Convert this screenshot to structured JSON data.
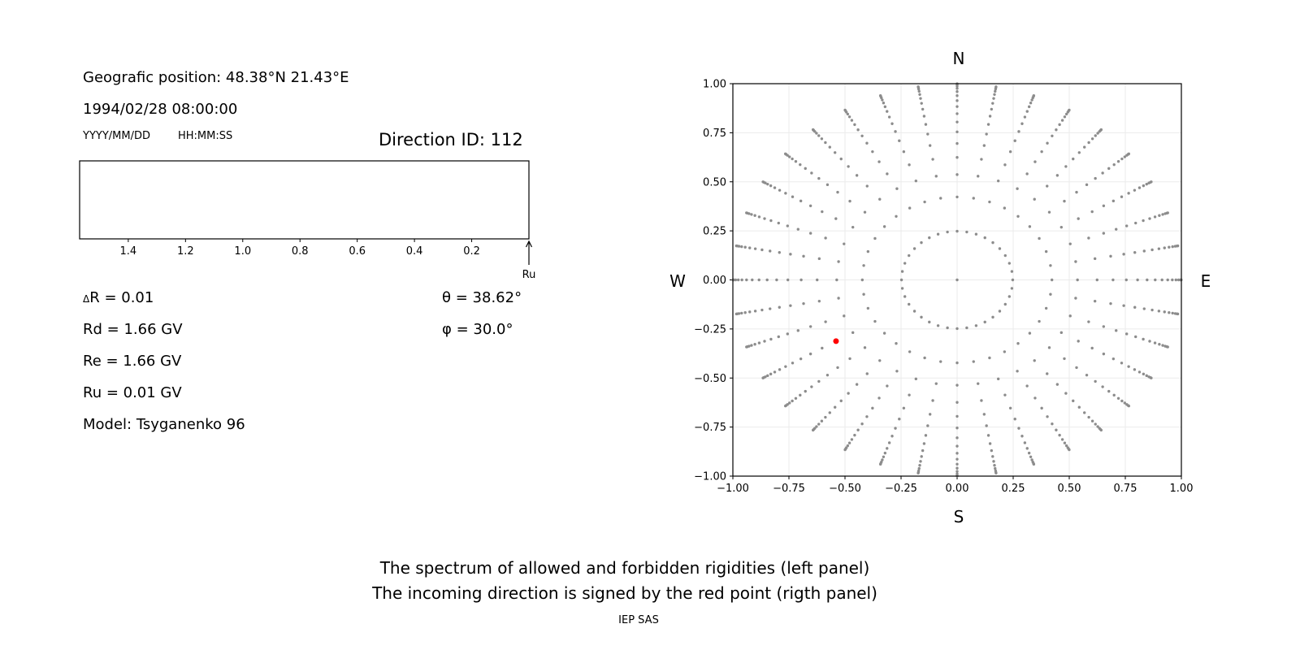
{
  "left_panel": {
    "position": "Geografic position: 48.38°N 21.43°E",
    "datetime": "1994/02/28 08:00:00",
    "date_format": "YYYY/MM/DD",
    "time_format": "HH:MM:SS",
    "direction_id": "Direction ID: 112",
    "delta_r": "R = 0.01",
    "delta_symbol": "Δ",
    "rd": "Rd = 1.66 GV",
    "re": "Re = 1.66 GV",
    "ru": "Ru = 0.01 GV",
    "model": "Model: Tsyganenko 96",
    "theta": "θ = 38.62°",
    "phi": "φ = 30.0°",
    "ru_marker": "Ru"
  },
  "compass": {
    "n": "N",
    "s": "S",
    "w": "W",
    "e": "E"
  },
  "caption": {
    "line1": "The spectrum of allowed and forbidden rigidities (left panel)",
    "line2": "The incoming direction is signed by the red point (rigth panel)",
    "credit": "IEP SAS"
  },
  "chart_data": [
    {
      "type": "bar",
      "description_role": "rigidity spectrum",
      "xlim": [
        1.57,
        0
      ],
      "x_inverted": true,
      "xticks": [
        "1.4",
        "1.2",
        "1.0",
        "0.8",
        "0.6",
        "0.4",
        "0.2"
      ],
      "xtick_values": [
        1.4,
        1.2,
        1.0,
        0.8,
        0.6,
        0.4,
        0.2
      ],
      "values": [],
      "ru_marker_value": 0.01
    },
    {
      "type": "scatter",
      "xlim": [
        -1,
        1
      ],
      "ylim": [
        -1,
        1
      ],
      "grid": true,
      "xticks": [
        "−1.00",
        "−0.75",
        "−0.50",
        "−0.25",
        "0.00",
        "0.25",
        "0.50",
        "0.75",
        "1.00"
      ],
      "yticks": [
        "1.00",
        "0.75",
        "0.50",
        "0.25",
        "0.00",
        "−0.25",
        "−0.50",
        "−0.75",
        "−1.00"
      ],
      "tick_values": [
        -1,
        -0.75,
        -0.5,
        -0.25,
        0,
        0.25,
        0.5,
        0.75,
        1
      ],
      "grid_point_color": "#8c8c8c",
      "center_point": [
        0,
        0
      ],
      "ring_radii": [
        0.248,
        0.4228,
        0.5368,
        0.6242,
        0.6953,
        0.7546,
        0.8047,
        0.8472,
        0.8833,
        0.9138,
        0.9391,
        0.9596,
        0.9758,
        0.9877,
        0.9956,
        0.9995
      ],
      "azimuths_deg": [
        0,
        10,
        20,
        30,
        40,
        50,
        60,
        70,
        80,
        90,
        100,
        110,
        120,
        130,
        140,
        150,
        160,
        170,
        180,
        190,
        200,
        210,
        220,
        230,
        240,
        250,
        260,
        270,
        280,
        290,
        300,
        310,
        320,
        330,
        340,
        350
      ],
      "highlight_point": {
        "x": -0.54,
        "y": -0.312,
        "color": "#ff0000"
      }
    }
  ]
}
